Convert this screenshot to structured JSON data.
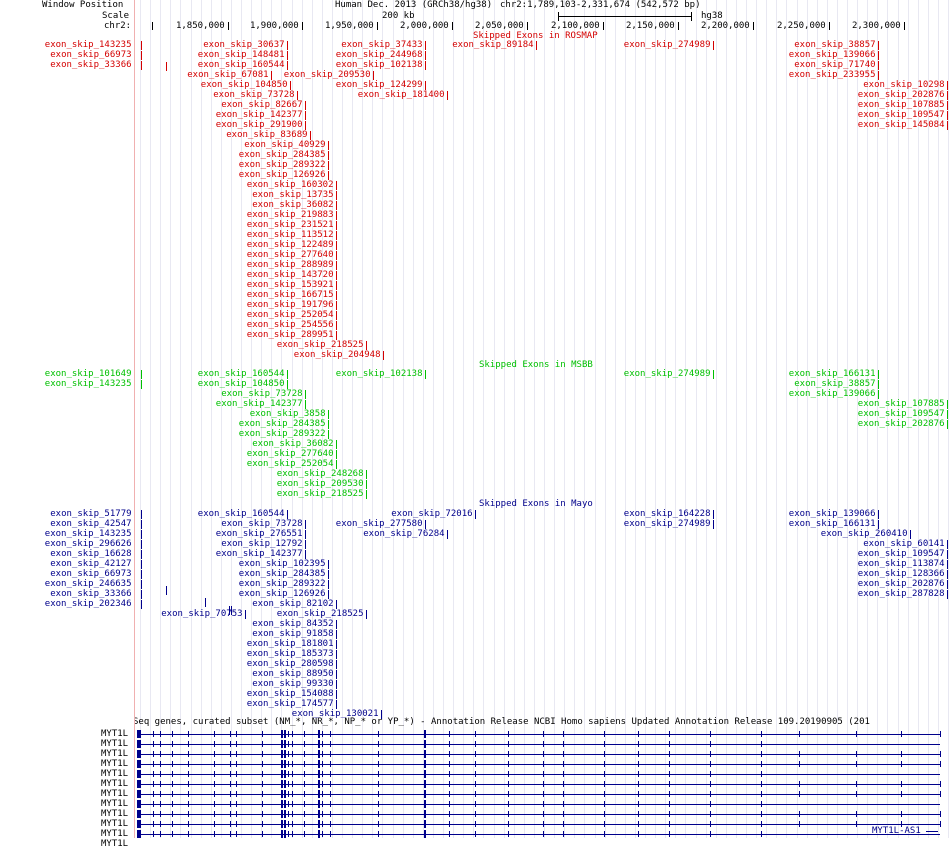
{
  "header": {
    "side_labels": [
      "Window Position",
      "Scale",
      "chr2:"
    ],
    "assembly": "Human Dec. 2013 (GRCh38/hg38)",
    "position": "chr2:1,789,103-2,331,674 (542,572 bp)",
    "scale_label": "200 kb",
    "scale_db": "hg38",
    "ticks": [
      "1,850,000",
      "1,900,000",
      "1,950,000",
      "2,000,000",
      "2,050,000",
      "2,100,000",
      "2,150,000",
      "2,200,000",
      "2,250,000",
      "2,300,000"
    ]
  },
  "tracks": {
    "rosmap_title": "Skipped Exons in ROSMAP",
    "msbb_title": "Skipped Exons in MSBB",
    "mayo_title": "Skipped Exons in Mayo",
    "refseq_title": "Seq genes, curated subset (NM_*, NR_*, NP_* or YP_*) - Annotation Release NCBI Homo sapiens Updated Annotation Release 109.20190905 (201",
    "gene_labels": [
      "MYT1L",
      "MYT1L",
      "MYT1L",
      "MYT1L",
      "MYT1L",
      "MYT1L",
      "MYT1L",
      "MYT1L",
      "MYT1L",
      "MYT1L",
      "MYT1L",
      "MYT1L"
    ],
    "as_label": "MYT1L-AS1"
  },
  "side": {
    "rosmap": [
      "exon_skip_143235",
      "exon_skip_66973",
      "exon_skip_33366"
    ],
    "msbb": [
      "exon_skip_101649",
      "exon_skip_143235"
    ],
    "mayo": [
      "exon_skip_51779",
      "exon_skip_42547",
      "exon_skip_143235",
      "exon_skip_296626",
      "exon_skip_16628",
      "exon_skip_42127",
      "exon_skip_66973",
      "exon_skip_246635",
      "exon_skip_33366",
      "exon_skip_202346"
    ]
  },
  "features": {
    "rosmap": [
      [
        "exon_skip_30637",
        0,
        2,
        287
      ],
      [
        "exon_skip_37433",
        0,
        2,
        425
      ],
      [
        "exon_skip_89184",
        0,
        2,
        536
      ],
      [
        "exon_skip_274989",
        0,
        2,
        713
      ],
      [
        "exon_skip_38857",
        0,
        2,
        878
      ],
      [
        "exon_skip_148481",
        1,
        2,
        287
      ],
      [
        "exon_skip_244968",
        1,
        2,
        425
      ],
      [
        "exon_skip_139066",
        1,
        2,
        878
      ],
      [
        "exon_skip_160544",
        2,
        2,
        287
      ],
      [
        "exon_skip_102138",
        2,
        2,
        425
      ],
      [
        "exon_skip_71740",
        2,
        2,
        878
      ],
      [
        "exon_skip_67081",
        3,
        2,
        271
      ],
      [
        "exon_skip_209530",
        3,
        2,
        373
      ],
      [
        "exon_skip_233955",
        3,
        2,
        878
      ],
      [
        "exon_skip_104850",
        4,
        2,
        290
      ],
      [
        "exon_skip_124299",
        4,
        2,
        425
      ],
      [
        "exon_skip_10298",
        4,
        2,
        947
      ],
      [
        "exon_skip_73728",
        5,
        2,
        297
      ],
      [
        "exon_skip_181400",
        5,
        2,
        447
      ],
      [
        "exon_skip_202876",
        5,
        2,
        947
      ],
      [
        "exon_skip_82667",
        6,
        2,
        305
      ],
      [
        "exon_skip_107885",
        6,
        2,
        947
      ],
      [
        "exon_skip_142377",
        7,
        2,
        305
      ],
      [
        "exon_skip_109547",
        7,
        2,
        947
      ],
      [
        "exon_skip_291900",
        8,
        2,
        305
      ],
      [
        "exon_skip_145084",
        8,
        2,
        947
      ],
      [
        "exon_skip_83689",
        9,
        2,
        310
      ],
      [
        "exon_skip_40929",
        10,
        2,
        328
      ],
      [
        "exon_skip_284385",
        11,
        2,
        328
      ],
      [
        "exon_skip_289322",
        12,
        2,
        328
      ],
      [
        "exon_skip_126926",
        13,
        2,
        328
      ],
      [
        "exon_skip_160302",
        14,
        2,
        336
      ],
      [
        "exon_skip_13735",
        15,
        2,
        336
      ],
      [
        "exon_skip_36082",
        16,
        2,
        336
      ],
      [
        "exon_skip_219883",
        17,
        2,
        336
      ],
      [
        "exon_skip_231521",
        18,
        2,
        336
      ],
      [
        "exon_skip_113512",
        19,
        2,
        336
      ],
      [
        "exon_skip_122489",
        20,
        2,
        336
      ],
      [
        "exon_skip_277640",
        21,
        2,
        336
      ],
      [
        "exon_skip_288989",
        22,
        2,
        336
      ],
      [
        "exon_skip_143720",
        23,
        2,
        336
      ],
      [
        "exon_skip_153921",
        24,
        2,
        336
      ],
      [
        "exon_skip_166715",
        25,
        2,
        336
      ],
      [
        "exon_skip_191796",
        26,
        2,
        336
      ],
      [
        "exon_skip_252054",
        27,
        2,
        336
      ],
      [
        "exon_skip_254556",
        28,
        2,
        336
      ],
      [
        "exon_skip_289951",
        29,
        2,
        336
      ],
      [
        "exon_skip_218525",
        30,
        2,
        366
      ],
      [
        "exon_skip_204948",
        31,
        2,
        383
      ]
    ],
    "msbb": [
      [
        "exon_skip_160544",
        0,
        2,
        287
      ],
      [
        "exon_skip_102138",
        0,
        2,
        425
      ],
      [
        "exon_skip_274989",
        0,
        2,
        713
      ],
      [
        "exon_skip_166131",
        0,
        2,
        878
      ],
      [
        "exon_skip_104850",
        1,
        2,
        287
      ],
      [
        "exon_skip_38857",
        1,
        2,
        878
      ],
      [
        "exon_skip_73728",
        2,
        2,
        305
      ],
      [
        "exon_skip_139066",
        2,
        2,
        878
      ],
      [
        "exon_skip_142377",
        3,
        2,
        305
      ],
      [
        "exon_skip_107885",
        3,
        2,
        947
      ],
      [
        "exon_skip_3858",
        4,
        2,
        328
      ],
      [
        "exon_skip_109547",
        4,
        2,
        947
      ],
      [
        "exon_skip_284385",
        5,
        2,
        328
      ],
      [
        "exon_skip_202876",
        5,
        2,
        947
      ],
      [
        "exon_skip_289322",
        6,
        2,
        328
      ],
      [
        "exon_skip_36082",
        7,
        2,
        336
      ],
      [
        "exon_skip_277640",
        8,
        2,
        336
      ],
      [
        "exon_skip_252054",
        9,
        2,
        336
      ],
      [
        "exon_skip_248268",
        10,
        2,
        366
      ],
      [
        "exon_skip_209530",
        11,
        2,
        366
      ],
      [
        "exon_skip_218525",
        12,
        2,
        366
      ]
    ],
    "mayo": [
      [
        "exon_skip_160544",
        0,
        2,
        287
      ],
      [
        "exon_skip_72016",
        0,
        2,
        475
      ],
      [
        "exon_skip_164228",
        0,
        2,
        713
      ],
      [
        "exon_skip_139066",
        0,
        2,
        878
      ],
      [
        "exon_skip_73728",
        1,
        2,
        305
      ],
      [
        "exon_skip_277580",
        1,
        2,
        425
      ],
      [
        "exon_skip_274989",
        1,
        2,
        713
      ],
      [
        "exon_skip_166131",
        1,
        2,
        878
      ],
      [
        "exon_skip_276551",
        2,
        2,
        305
      ],
      [
        "exon_skip_76284",
        2,
        2,
        447
      ],
      [
        "exon_skip_260410",
        2,
        2,
        910
      ],
      [
        "exon_skip_12792",
        3,
        2,
        305
      ],
      [
        "exon_skip_60141",
        3,
        2,
        947
      ],
      [
        "exon_skip_142377",
        4,
        2,
        305
      ],
      [
        "exon_skip_109547",
        4,
        2,
        947
      ],
      [
        "exon_skip_102395",
        5,
        2,
        328
      ],
      [
        "exon_skip_113874",
        5,
        2,
        947
      ],
      [
        "exon_skip_284385",
        6,
        2,
        328
      ],
      [
        "exon_skip_128366",
        6,
        2,
        947
      ],
      [
        "exon_skip_289322",
        7,
        2,
        328
      ],
      [
        "exon_skip_202876",
        7,
        2,
        947
      ],
      [
        "exon_skip_126926",
        8,
        2,
        328
      ],
      [
        "exon_skip_287828",
        8,
        2,
        947
      ],
      [
        "exon_skip_82102",
        9,
        2,
        336
      ],
      [
        "exon_skip_70753",
        10,
        2,
        245
      ],
      [
        "exon_skip_218525",
        10,
        2,
        366
      ],
      [
        "exon_skip_84352",
        11,
        2,
        336
      ],
      [
        "exon_skip_91858",
        12,
        2,
        336
      ],
      [
        "exon_skip_181801",
        13,
        2,
        336
      ],
      [
        "exon_skip_185373",
        14,
        2,
        336
      ],
      [
        "exon_skip_280598",
        15,
        2,
        336
      ],
      [
        "exon_skip_88950",
        16,
        2,
        336
      ],
      [
        "exon_skip_99330",
        17,
        2,
        336
      ],
      [
        "exon_skip_154088",
        18,
        2,
        336
      ],
      [
        "exon_skip_174577",
        19,
        2,
        336
      ],
      [
        "exon_skip_130021",
        20,
        2,
        381
      ]
    ]
  },
  "colors": {
    "rosmap": "#d40000",
    "msbb": "#00c000",
    "mayo": "#00008b"
  }
}
